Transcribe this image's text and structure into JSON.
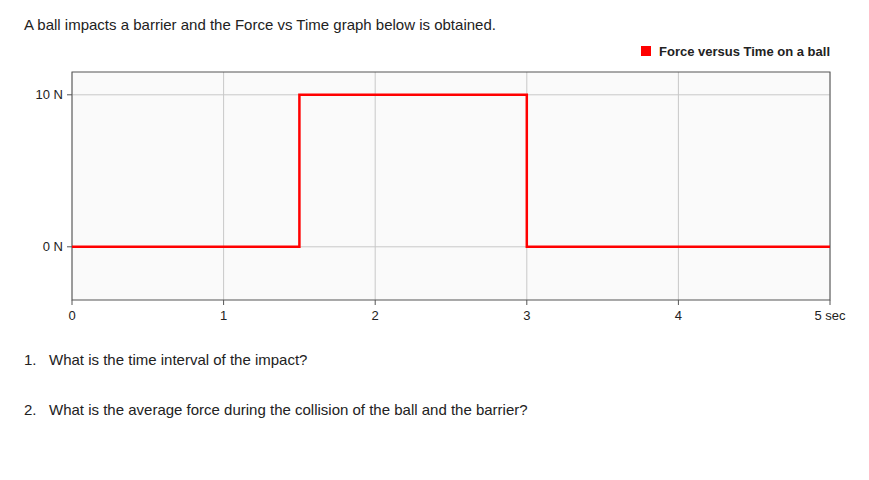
{
  "chart_data": {
    "type": "line",
    "title": "A ball impacts a barrier and the Force vs Time graph below is obtained.",
    "x": [
      0,
      1.5,
      1.5,
      3.0,
      3.0,
      5.0
    ],
    "series": [
      {
        "name": "Force versus Time on a ball",
        "color": "#ff0000",
        "values": [
          0,
          0,
          10,
          10,
          0,
          0
        ]
      }
    ],
    "xlim": [
      0,
      5
    ],
    "ylim": [
      -3.5,
      11.5
    ],
    "xticks": [
      0,
      1,
      2,
      3,
      4,
      {
        "value": 5,
        "label": "5 sec"
      }
    ],
    "yticks": [
      {
        "value": 0,
        "label": "0 N"
      },
      {
        "value": 10,
        "label": "10 N"
      }
    ],
    "grid": true,
    "legend": "right",
    "annotations": [
      "1.   What is the time interval of the impact?",
      "2.   What is the average force during the collision of the ball and the barrier?"
    ]
  }
}
